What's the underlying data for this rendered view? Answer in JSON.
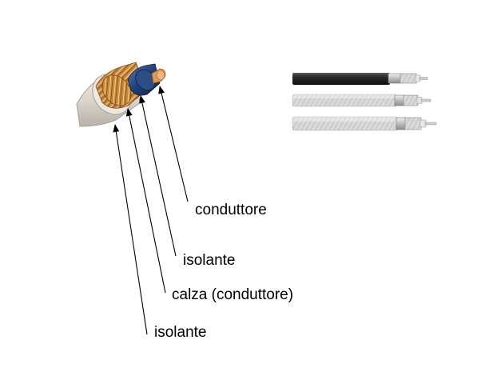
{
  "labels": {
    "center_conductor": "conduttore",
    "inner_insulator": "isolante",
    "shield": "calza (conduttore)",
    "outer_jacket": "isolante"
  },
  "colors": {
    "jacket": "#ded7d0",
    "braid": "#c98a3e",
    "dielectric": "#1f3f73",
    "copper": "#e09a55",
    "arrow": "#000000",
    "cable_black": "#1c1c1c",
    "cable_braided": "#c7c7c7"
  }
}
